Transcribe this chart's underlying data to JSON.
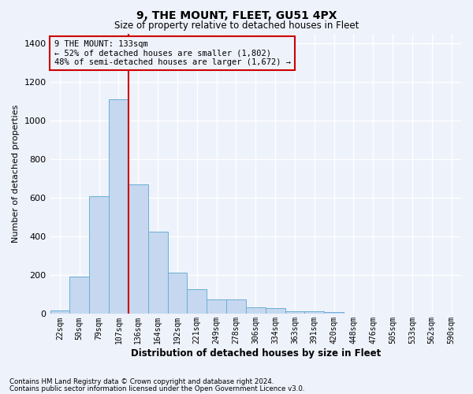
{
  "title": "9, THE MOUNT, FLEET, GU51 4PX",
  "subtitle": "Size of property relative to detached houses in Fleet",
  "xlabel": "Distribution of detached houses by size in Fleet",
  "ylabel": "Number of detached properties",
  "bar_color": "#c5d8f0",
  "bar_edge_color": "#6baed6",
  "categories": [
    "22sqm",
    "50sqm",
    "79sqm",
    "107sqm",
    "136sqm",
    "164sqm",
    "192sqm",
    "221sqm",
    "249sqm",
    "278sqm",
    "306sqm",
    "334sqm",
    "363sqm",
    "391sqm",
    "420sqm",
    "448sqm",
    "476sqm",
    "505sqm",
    "533sqm",
    "562sqm",
    "590sqm"
  ],
  "values": [
    20,
    195,
    610,
    1110,
    670,
    425,
    215,
    130,
    75,
    75,
    35,
    30,
    15,
    15,
    10,
    0,
    0,
    0,
    0,
    0,
    0
  ],
  "ylim": [
    0,
    1450
  ],
  "yticks": [
    0,
    200,
    400,
    600,
    800,
    1000,
    1200,
    1400
  ],
  "red_line_index": 4,
  "annotation_text": "9 THE MOUNT: 133sqm\n← 52% of detached houses are smaller (1,802)\n48% of semi-detached houses are larger (1,672) →",
  "footer_line1": "Contains HM Land Registry data © Crown copyright and database right 2024.",
  "footer_line2": "Contains public sector information licensed under the Open Government Licence v3.0.",
  "background_color": "#eef2fb",
  "grid_color": "#ffffff",
  "line_color": "#cc0000",
  "title_fontsize": 10,
  "subtitle_fontsize": 8.5,
  "ylabel_fontsize": 8,
  "xlabel_fontsize": 8.5
}
